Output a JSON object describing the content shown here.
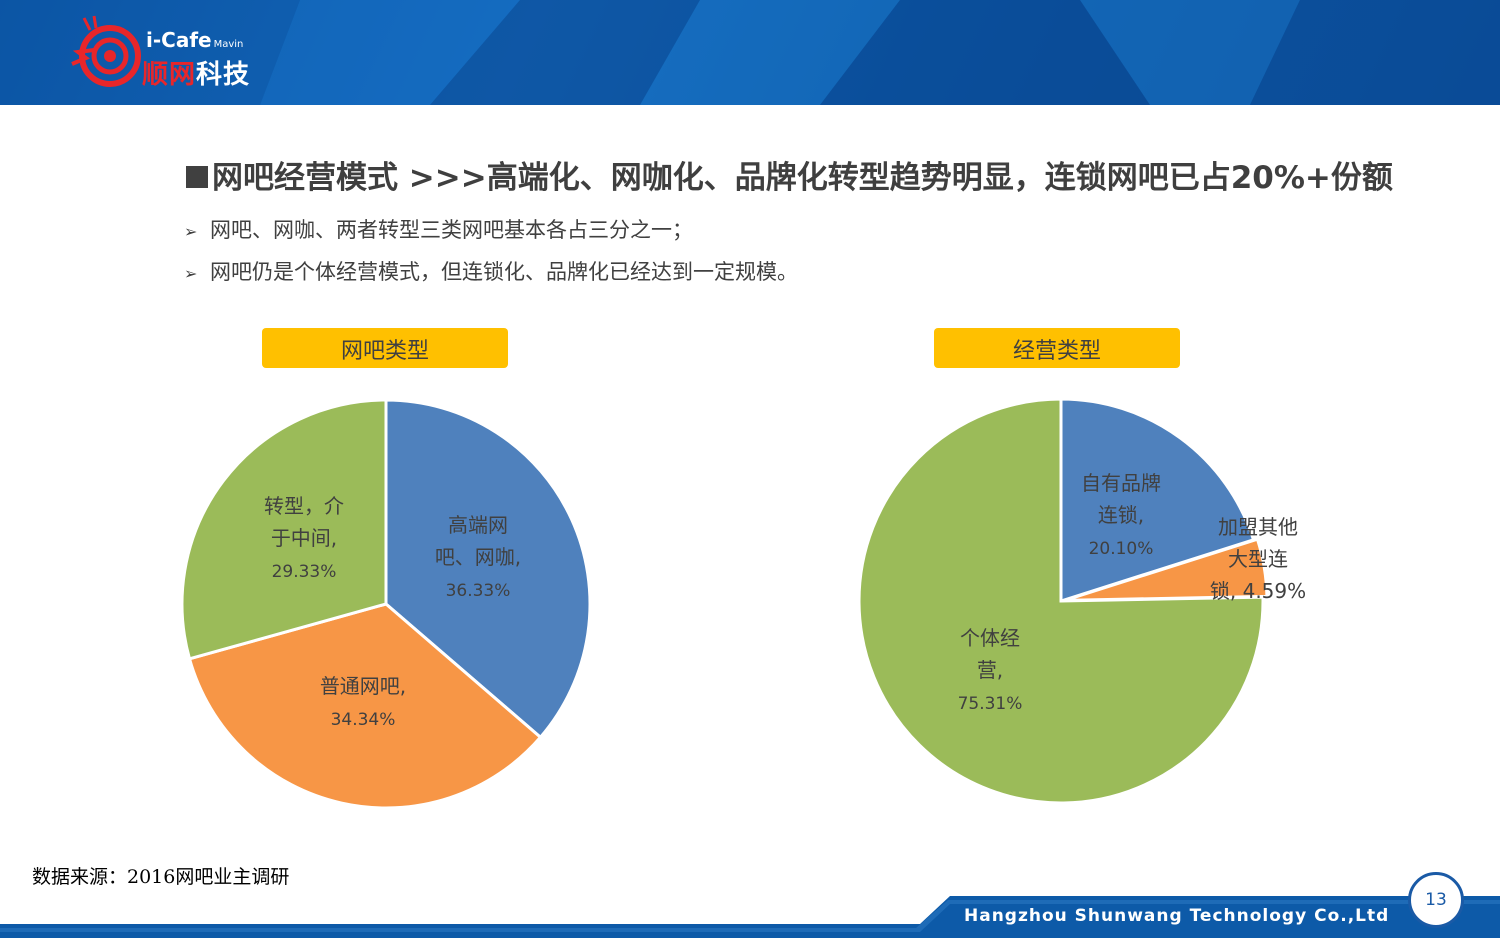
{
  "header": {
    "brand_en": "i-Cafe",
    "brand_en_small": "Mavin",
    "brand_cn_red": "顺网",
    "brand_cn": "科技"
  },
  "title": "网吧经营模式   >>>高端化、网咖化、品牌化转型趋势明显，连锁网吧已占20%+份额",
  "bullets": [
    "网吧、网咖、两者转型三类网吧基本各占三分之一；",
    "网吧仍是个体经营模式，但连锁化、品牌化已经达到一定规模。"
  ],
  "source": "数据来源：2016网吧业主调研",
  "footer": {
    "company": "Hangzhou Shunwang Technology Co.,Ltd",
    "page": "13"
  },
  "colors": {
    "blue": "#4f81bd",
    "orange": "#f79646",
    "green": "#9bbb59",
    "label_bg": "#ffc000",
    "header": "#0d5aa8"
  },
  "chart_data": [
    {
      "type": "pie",
      "title": "网吧类型",
      "slices": [
        {
          "label_lines": [
            "高端网",
            "吧、网咖,",
            "36.33%"
          ],
          "value": 36.33,
          "color": "#4f81bd"
        },
        {
          "label_lines": [
            "普通网吧,",
            "34.34%"
          ],
          "value": 34.34,
          "color": "#f79646"
        },
        {
          "label_lines": [
            "转型，介",
            "于中间,",
            "29.33%"
          ],
          "value": 29.33,
          "color": "#9bbb59"
        }
      ]
    },
    {
      "type": "pie",
      "title": "经营类型",
      "slices": [
        {
          "label_lines": [
            "自有品牌",
            "连锁,",
            "20.10%"
          ],
          "value": 20.1,
          "color": "#4f81bd"
        },
        {
          "label_lines": [
            "加盟其他",
            "大型连",
            "锁, 4.59%"
          ],
          "value": 4.59,
          "color": "#f79646"
        },
        {
          "label_lines": [
            "个体经",
            "营,",
            "75.31%"
          ],
          "value": 75.31,
          "color": "#9bbb59"
        }
      ]
    }
  ]
}
